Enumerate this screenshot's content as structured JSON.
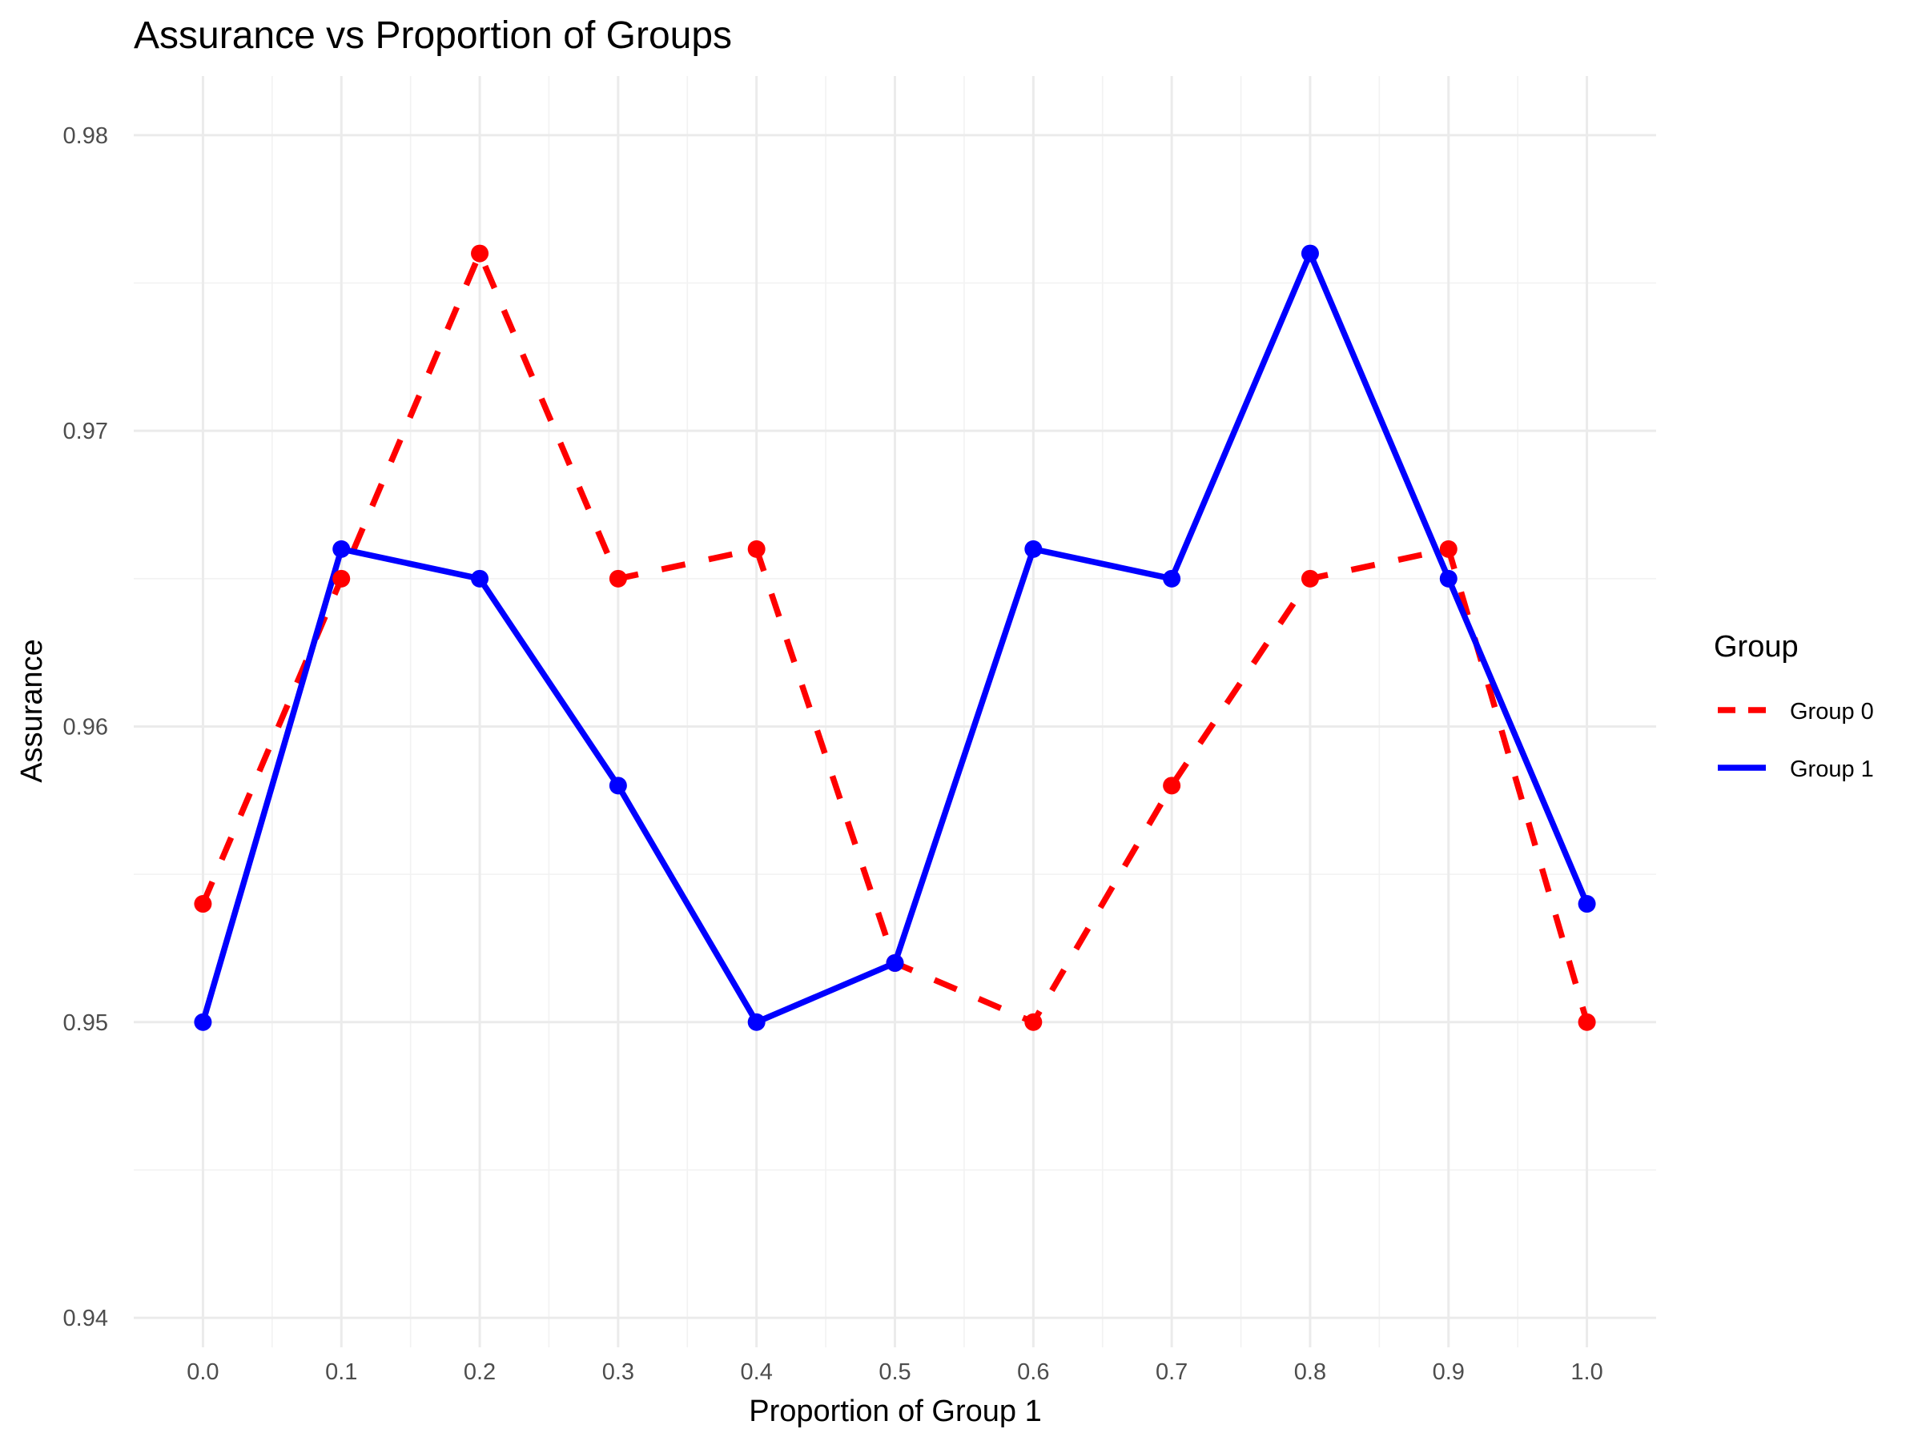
{
  "chart_data": {
    "type": "line",
    "title": "Assurance vs Proportion of Groups",
    "xlabel": "Proportion of Group 1",
    "ylabel": "Assurance",
    "x": [
      0.0,
      0.1,
      0.2,
      0.3,
      0.4,
      0.5,
      0.6,
      0.7,
      0.8,
      0.9,
      1.0
    ],
    "x_tick_labels": [
      "0.0",
      "0.1",
      "0.2",
      "0.3",
      "0.4",
      "0.5",
      "0.6",
      "0.7",
      "0.8",
      "0.9",
      "1.0"
    ],
    "y_ticks": [
      0.94,
      0.95,
      0.96,
      0.97,
      0.98
    ],
    "y_tick_labels": [
      "0.94",
      "0.95",
      "0.96",
      "0.97",
      "0.98"
    ],
    "xlim": [
      -0.05,
      1.05
    ],
    "ylim": [
      0.939,
      0.982
    ],
    "grid": true,
    "legend": {
      "title": "Group",
      "position": "right"
    },
    "series": [
      {
        "name": "Group 0",
        "color": "#ff0000",
        "linestyle": "dashed",
        "values": [
          0.954,
          0.965,
          0.976,
          0.965,
          0.966,
          0.952,
          0.95,
          0.958,
          0.965,
          0.966,
          0.95
        ]
      },
      {
        "name": "Group 1",
        "color": "#0000ff",
        "linestyle": "solid",
        "values": [
          0.95,
          0.966,
          0.965,
          0.958,
          0.95,
          0.952,
          0.966,
          0.965,
          0.976,
          0.965,
          0.954
        ]
      }
    ]
  }
}
